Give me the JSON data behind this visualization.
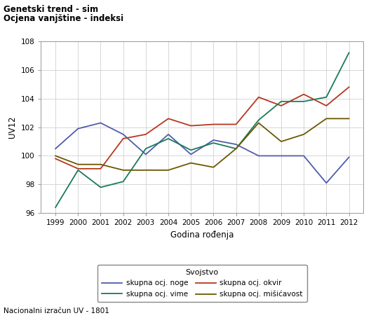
{
  "title1": "Genetski trend - sim",
  "title2": "Ocjena vanjštine - indeksi",
  "xlabel": "Godina rođenja",
  "ylabel": "UV12",
  "footnote": "Nacionalni izračun UV - 1801",
  "legend_title": "Svojstvo",
  "years": [
    1999,
    2000,
    2001,
    2002,
    2003,
    2004,
    2005,
    2006,
    2007,
    2008,
    2009,
    2010,
    2011,
    2012
  ],
  "series": {
    "skupna ocj. noge": {
      "color": "#4f5da8",
      "values": [
        100.5,
        101.9,
        102.3,
        101.5,
        100.1,
        101.5,
        100.1,
        101.1,
        100.8,
        100.0,
        100.0,
        100.0,
        98.1,
        99.9
      ]
    },
    "skupna ocj. okvir": {
      "color": "#b5371e",
      "values": [
        99.8,
        99.1,
        99.1,
        101.2,
        101.5,
        102.6,
        102.1,
        102.2,
        102.2,
        104.1,
        103.5,
        104.3,
        103.5,
        104.8
      ]
    },
    "skupna ocj. vime": {
      "color": "#1a7a5a",
      "values": [
        96.4,
        99.0,
        97.8,
        98.2,
        100.5,
        101.2,
        100.4,
        100.9,
        100.5,
        102.5,
        103.8,
        103.8,
        104.1,
        107.2
      ]
    },
    "skupna ocj. mišićavost": {
      "color": "#6b5800",
      "values": [
        100.0,
        99.4,
        99.4,
        99.0,
        99.0,
        99.0,
        99.5,
        99.2,
        100.5,
        102.3,
        101.0,
        101.5,
        102.6,
        102.6
      ]
    }
  },
  "ylim": [
    96,
    108
  ],
  "yticks": [
    96,
    98,
    100,
    102,
    104,
    106,
    108
  ],
  "fig_bg": "#ffffff",
  "plot_bg": "#ffffff",
  "grid_color": "#d0d0d0",
  "spine_color": "#999999",
  "tick_fontsize": 7.5,
  "label_fontsize": 8.5,
  "legend_fontsize": 7.5,
  "legend_title_fontsize": 8
}
